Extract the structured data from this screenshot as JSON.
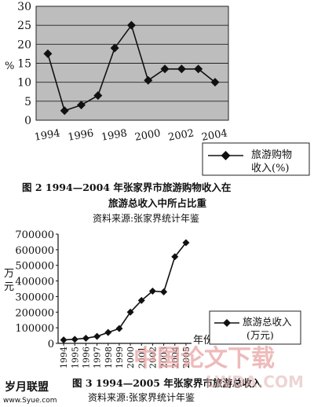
{
  "chart_data": [
    {
      "type": "line",
      "title": "图 2   1994—2004 年张家界市旅游购物收入在旅游总收入中所占比重",
      "caption_line1": "图 2   1994—2004 年张家界市旅游购物收入在",
      "caption_line2": "旅游总收入中所占比重",
      "source": "资料来源:张家界统计年鉴",
      "ylabel": "%",
      "ylim": [
        0,
        30
      ],
      "yticks": [
        0,
        5,
        10,
        15,
        20,
        25,
        30
      ],
      "xlim": [
        1993.3,
        2004.8
      ],
      "xticks": [
        "1994",
        "1996",
        "1998",
        "2000",
        "2002",
        "2004"
      ],
      "grid": true,
      "legend_position": "bottom-right",
      "legend_line1": "旅游购物",
      "legend_line2": "收入(%)",
      "series": [
        {
          "name": "旅游购物收入(%)",
          "x": [
            1994,
            1995,
            1996,
            1997,
            1998,
            1999,
            2000,
            2001,
            2002,
            2003,
            2004
          ],
          "values": [
            17.5,
            2.5,
            4,
            6.5,
            19,
            25,
            10.5,
            13.5,
            13.5,
            13.5,
            10
          ]
        }
      ]
    },
    {
      "type": "line",
      "title": "图 3   1994—2005 年张家界市旅游总收入",
      "source": "资料来源:张家界统计年鉴",
      "ylabel_line1": "万",
      "ylabel_line2": "元",
      "xlabel": "年份",
      "ylim": [
        0,
        700000
      ],
      "yticks": [
        "0",
        "100000",
        "200000",
        "300000",
        "400000",
        "500000",
        "600000",
        "700000"
      ],
      "xlim": [
        1993.5,
        2005.5
      ],
      "xticks": [
        "1994",
        "1995",
        "1996",
        "1997",
        "1998",
        "1999",
        "2000",
        "2001",
        "2002",
        "2003",
        "2004",
        "2005"
      ],
      "grid": false,
      "legend_position": "bottom-right",
      "legend_line1": "旅游总收入",
      "legend_line2": "(万元)",
      "series": [
        {
          "name": "旅游总收入(万元)",
          "x": [
            1994,
            1995,
            1996,
            1997,
            1998,
            1999,
            2000,
            2001,
            2002,
            2003,
            2004,
            2005
          ],
          "values": [
            22000,
            26000,
            33000,
            45000,
            70000,
            95000,
            200000,
            275000,
            335000,
            330000,
            555000,
            645000
          ]
        }
      ]
    }
  ],
  "watermark": {
    "logo_left": "岁月联盟",
    "site_left": "www.Syue.com",
    "logo_right": "中国论文下载",
    "site_right": "LWDA.COM"
  }
}
